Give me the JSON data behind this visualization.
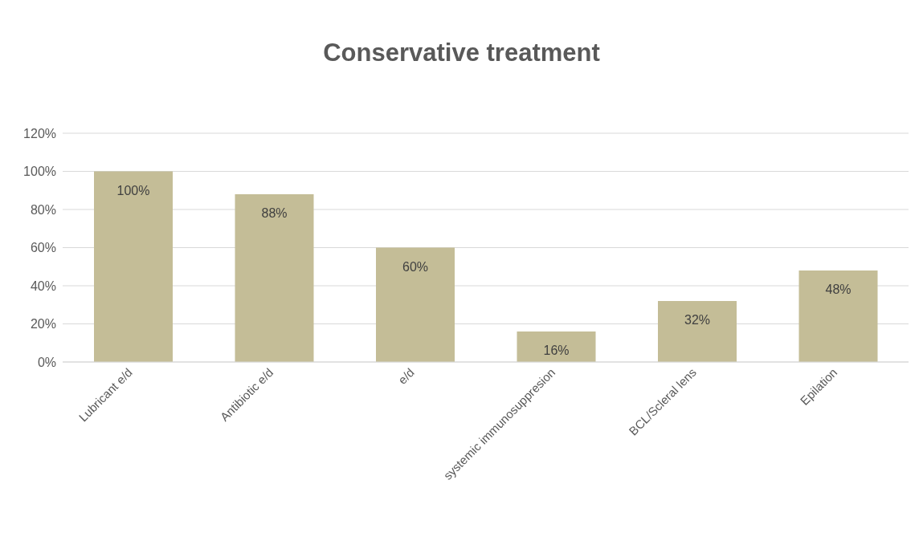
{
  "chart_data": {
    "type": "bar",
    "title": "Conservative treatment",
    "categories": [
      "Lubricant e/d",
      "Antibiotic e/d",
      "e/d",
      "systemic immunosuppresion",
      "BCL/Scleral lens",
      "Epilation"
    ],
    "values": [
      100,
      88,
      60,
      16,
      32,
      48
    ],
    "value_labels": [
      "100%",
      "88%",
      "60%",
      "16%",
      "32%",
      "48%"
    ],
    "color": "#c4bd97",
    "ylim": [
      0,
      120
    ],
    "yticks": [
      {
        "value": 0,
        "label": "0%"
      },
      {
        "value": 20,
        "label": "20%"
      },
      {
        "value": 40,
        "label": "40%"
      },
      {
        "value": 60,
        "label": "60%"
      },
      {
        "value": 80,
        "label": "80%"
      },
      {
        "value": 100,
        "label": "100%"
      },
      {
        "value": 120,
        "label": "120%"
      }
    ],
    "grid": "y",
    "legend": false
  }
}
